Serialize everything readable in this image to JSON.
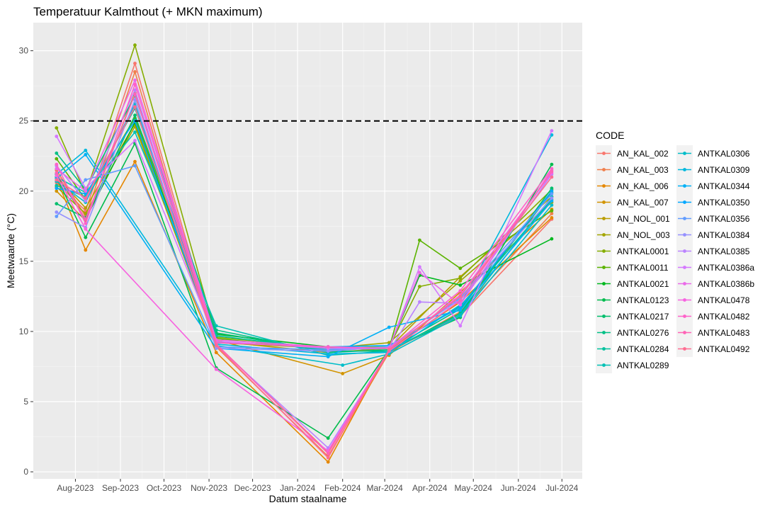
{
  "chart_data": {
    "type": "line",
    "title": "Temperatuur Kalmthout (+ MKN maximum)",
    "xlabel": "Datum staalname",
    "ylabel": "Meetwaarde (°C)",
    "xlim": [
      "2023-07-03",
      "2024-07-15"
    ],
    "ylim": [
      -0.5,
      32
    ],
    "x_ticks": [
      "2023-08-01",
      "2023-09-01",
      "2023-10-01",
      "2023-11-01",
      "2023-12-01",
      "2024-01-01",
      "2024-02-01",
      "2024-03-01",
      "2024-04-01",
      "2024-05-01",
      "2024-06-01",
      "2024-07-01"
    ],
    "x_tick_labels": [
      "Aug-2023",
      "Sep-2023",
      "Oct-2023",
      "Nov-2023",
      "Dec-2023",
      "Jan-2024",
      "Feb-2024",
      "Mar-2024",
      "Apr-2024",
      "May-2024",
      "Jun-2024",
      "Jul-2024"
    ],
    "y_ticks": [
      0,
      5,
      10,
      15,
      20,
      25,
      30
    ],
    "y_tick_labels": [
      "0",
      "5",
      "10",
      "15",
      "20",
      "25",
      "30"
    ],
    "reference_line": {
      "y": 25,
      "style": "dashed",
      "color": "#000000"
    },
    "grid": true,
    "legend": {
      "title": "CODE",
      "position": "right",
      "columns": 2
    },
    "series": [
      {
        "name": "AN_KAL_002",
        "color": "#F8766D",
        "x": [
          "2023-07-19",
          "2023-08-08",
          "2023-09-11",
          "2023-11-06",
          "2024-01-22",
          "2024-03-04",
          "2024-04-22",
          "2024-06-24"
        ],
        "y": [
          20.6,
          18.6,
          29.1,
          9.1,
          1.4,
          8.6,
          11.1,
          18.0
        ]
      },
      {
        "name": "AN_KAL_003",
        "color": "#F07F4C",
        "x": [
          "2023-07-19",
          "2023-08-08",
          "2023-09-11",
          "2023-11-06",
          "2024-01-22",
          "2024-03-04",
          "2024-04-22",
          "2024-06-24"
        ],
        "y": [
          21.5,
          18.2,
          28.5,
          8.9,
          1.1,
          8.5,
          11.4,
          18.4
        ]
      },
      {
        "name": "AN_KAL_006",
        "color": "#E58700",
        "x": [
          "2023-07-19",
          "2023-08-08",
          "2023-09-11",
          "2023-11-06",
          "2024-01-22",
          "2024-03-04",
          "2024-04-22",
          "2024-06-24"
        ],
        "y": [
          20.9,
          15.8,
          22.1,
          8.5,
          0.7,
          8.7,
          12.1,
          18.1
        ]
      },
      {
        "name": "AN_KAL_007",
        "color": "#D29400",
        "x": [
          "2023-07-19",
          "2023-08-08",
          "2023-09-11",
          "2023-11-06",
          "2024-02-01",
          "2024-03-04",
          "2024-04-22",
          "2024-06-24"
        ],
        "y": [
          20.0,
          17.9,
          27.0,
          9.4,
          7.0,
          8.3,
          12.8,
          18.7
        ]
      },
      {
        "name": "AN_NOL_001",
        "color": "#BB9D00",
        "x": [
          "2023-07-19",
          "2023-08-08",
          "2023-09-11",
          "2023-11-06",
          "2024-01-22",
          "2024-03-04",
          "2024-04-22",
          "2024-06-24"
        ],
        "y": [
          21.0,
          18.8,
          24.8,
          9.3,
          8.5,
          8.8,
          13.9,
          19.6
        ]
      },
      {
        "name": "AN_NOL_003",
        "color": "#A3A500",
        "x": [
          "2023-07-19",
          "2023-08-08",
          "2023-09-11",
          "2023-11-06",
          "2024-01-22",
          "2024-03-04",
          "2024-04-22",
          "2024-06-24"
        ],
        "y": [
          20.3,
          18.4,
          24.6,
          9.2,
          8.8,
          9.2,
          13.6,
          19.2
        ]
      },
      {
        "name": "ANTKAL0001",
        "color": "#85AD00",
        "x": [
          "2023-07-19",
          "2023-08-08",
          "2023-09-11",
          "2023-11-06",
          "2024-01-22",
          "2024-03-04",
          "2024-03-25",
          "2024-04-22",
          "2024-06-24"
        ],
        "y": [
          24.5,
          19.8,
          30.4,
          9.6,
          8.8,
          8.9,
          13.2,
          13.8,
          20.1
        ]
      },
      {
        "name": "ANTKAL0011",
        "color": "#5BB300",
        "x": [
          "2023-07-19",
          "2023-08-08",
          "2023-09-11",
          "2023-11-06",
          "2024-01-22",
          "2024-03-04",
          "2024-03-25",
          "2024-04-22",
          "2024-06-24"
        ],
        "y": [
          22.3,
          19.4,
          25.2,
          9.5,
          8.7,
          8.8,
          16.5,
          14.5,
          18.6
        ]
      },
      {
        "name": "ANTKAL0021",
        "color": "#00B81F",
        "x": [
          "2023-07-19",
          "2023-08-08",
          "2023-09-11",
          "2023-11-06",
          "2024-01-22",
          "2024-03-04",
          "2024-03-25",
          "2024-04-22",
          "2024-06-24"
        ],
        "y": [
          21.2,
          18.0,
          24.9,
          9.8,
          8.9,
          8.8,
          14.0,
          13.3,
          16.6
        ]
      },
      {
        "name": "ANTKAL0123",
        "color": "#00BB4E",
        "x": [
          "2023-07-19",
          "2023-08-08",
          "2023-09-11",
          "2023-11-06",
          "2024-01-22",
          "2024-03-04",
          "2024-04-22",
          "2024-06-24"
        ],
        "y": [
          21.0,
          16.7,
          23.4,
          7.4,
          2.4,
          8.7,
          11.0,
          21.9
        ]
      },
      {
        "name": "ANTKAL0217",
        "color": "#00BE6C",
        "x": [
          "2023-07-19",
          "2023-08-08",
          "2023-09-11",
          "2023-11-06",
          "2024-01-22",
          "2024-03-04",
          "2024-04-22",
          "2024-06-24"
        ],
        "y": [
          19.1,
          18.1,
          25.4,
          9.9,
          8.6,
          8.6,
          11.3,
          20.2
        ]
      },
      {
        "name": "ANTKAL0276",
        "color": "#00C086",
        "x": [
          "2023-07-19",
          "2023-08-08",
          "2023-09-11",
          "2023-11-06",
          "2024-01-22",
          "2024-03-04",
          "2024-04-22",
          "2024-06-24"
        ],
        "y": [
          22.7,
          20.1,
          26.8,
          10.1,
          8.5,
          8.7,
          11.6,
          19.9
        ]
      },
      {
        "name": "ANTKAL0284",
        "color": "#00C19E",
        "x": [
          "2023-07-19",
          "2023-08-08",
          "2023-09-11",
          "2023-11-06",
          "2024-01-22",
          "2024-03-04",
          "2024-04-22",
          "2024-06-24"
        ],
        "y": [
          20.4,
          19.6,
          25.9,
          9.7,
          8.7,
          8.9,
          11.8,
          19.4
        ]
      },
      {
        "name": "ANTKAL0289",
        "color": "#00C0B4",
        "x": [
          "2023-07-19",
          "2023-08-08",
          "2023-09-11",
          "2023-11-06",
          "2024-01-22",
          "2024-03-04",
          "2024-04-22",
          "2024-06-24"
        ],
        "y": [
          21.0,
          19.9,
          24.2,
          10.4,
          8.3,
          8.6,
          11.2,
          19.6
        ]
      },
      {
        "name": "ANTKAL0306",
        "color": "#00BDC9",
        "x": [
          "2023-07-19",
          "2023-08-08",
          "2023-09-11",
          "2023-11-06",
          "2024-02-01",
          "2024-03-04",
          "2024-04-22",
          "2024-06-24"
        ],
        "y": [
          20.7,
          19.2,
          26.2,
          9.0,
          7.6,
          8.4,
          11.1,
          19.0
        ]
      },
      {
        "name": "ANTKAL0309",
        "color": "#00B8DD",
        "x": [
          "2023-07-19",
          "2023-08-08",
          "2023-11-06",
          "2024-01-22",
          "2024-03-04",
          "2024-04-22",
          "2024-06-24"
        ],
        "y": [
          21.2,
          22.9,
          9.1,
          8.4,
          8.5,
          11.9,
          24.0
        ]
      },
      {
        "name": "ANTKAL0344",
        "color": "#00B0F6",
        "x": [
          "2023-07-19",
          "2023-08-08",
          "2023-11-06",
          "2024-01-22",
          "2024-03-04",
          "2024-04-22",
          "2024-06-24"
        ],
        "y": [
          20.9,
          22.6,
          8.8,
          8.2,
          10.3,
          11.5,
          19.3
        ]
      },
      {
        "name": "ANTKAL0350",
        "color": "#00A7FF",
        "x": [
          "2023-07-19",
          "2023-08-08",
          "2023-09-11",
          "2023-11-06",
          "2024-01-22",
          "2024-03-04",
          "2024-04-22",
          "2024-06-24"
        ],
        "y": [
          20.2,
          19.8,
          25.0,
          9.2,
          8.9,
          9.0,
          11.7,
          20.0
        ]
      },
      {
        "name": "ANTKAL0356",
        "color": "#619CFF",
        "x": [
          "2023-07-19",
          "2023-08-08",
          "2023-09-11",
          "2023-11-06",
          "2024-01-22",
          "2024-03-04",
          "2024-04-22",
          "2024-06-24"
        ],
        "y": [
          18.2,
          20.8,
          21.8,
          8.9,
          8.7,
          8.8,
          12.4,
          19.8
        ]
      },
      {
        "name": "ANTKAL0384",
        "color": "#9590FF",
        "x": [
          "2023-07-19",
          "2023-08-08",
          "2023-09-11",
          "2023-11-06",
          "2024-01-22",
          "2024-03-04",
          "2024-04-22",
          "2024-06-24"
        ],
        "y": [
          18.5,
          17.4,
          26.5,
          8.8,
          8.6,
          8.9,
          12.3,
          19.5
        ]
      },
      {
        "name": "ANTKAL0385",
        "color": "#BA83FF",
        "x": [
          "2023-07-19",
          "2023-08-08",
          "2023-09-11",
          "2023-11-06",
          "2024-01-22",
          "2024-03-04",
          "2024-03-25",
          "2024-04-22",
          "2024-06-24"
        ],
        "y": [
          21.8,
          19.3,
          27.2,
          9.0,
          1.7,
          8.6,
          12.1,
          12.0,
          21.2
        ]
      },
      {
        "name": "ANTKAL0386a",
        "color": "#D577FF",
        "x": [
          "2023-07-19",
          "2023-08-08",
          "2023-09-11",
          "2023-11-06",
          "2024-01-22",
          "2024-03-04",
          "2024-03-25",
          "2024-04-22",
          "2024-06-24"
        ],
        "y": [
          23.9,
          20.2,
          23.6,
          9.3,
          8.8,
          8.8,
          14.6,
          10.4,
          24.3
        ]
      },
      {
        "name": "ANTKAL0386b",
        "color": "#EA6AE8",
        "x": [
          "2023-07-19",
          "2023-08-08",
          "2023-09-11",
          "2023-11-06",
          "2024-01-22",
          "2024-03-04",
          "2024-03-25",
          "2024-04-22",
          "2024-06-24"
        ],
        "y": [
          21.6,
          20.0,
          27.9,
          9.4,
          8.9,
          8.8,
          14.2,
          11.9,
          21.5
        ]
      },
      {
        "name": "ANTKAL0478",
        "color": "#F763E0",
        "x": [
          "2023-07-19",
          "2023-08-08",
          "2023-11-06",
          "2024-01-22",
          "2024-03-04",
          "2024-04-22",
          "2024-06-24"
        ],
        "y": [
          21.1,
          17.3,
          7.3,
          1.5,
          8.7,
          12.6,
          21.3
        ]
      },
      {
        "name": "ANTKAL0482",
        "color": "#FF61C9",
        "x": [
          "2023-07-19",
          "2023-08-08",
          "2023-09-11",
          "2023-11-06",
          "2024-01-22",
          "2024-03-04",
          "2024-04-22",
          "2024-06-24"
        ],
        "y": [
          21.9,
          17.7,
          27.6,
          9.2,
          8.9,
          8.8,
          12.9,
          21.6
        ]
      },
      {
        "name": "ANTKAL0483",
        "color": "#FF63B6",
        "x": [
          "2023-07-19",
          "2023-08-08",
          "2023-09-11",
          "2023-11-06",
          "2024-01-22",
          "2024-03-04",
          "2024-04-22",
          "2024-06-24"
        ],
        "y": [
          21.3,
          18.0,
          26.9,
          9.1,
          1.3,
          8.6,
          12.2,
          21.4
        ]
      },
      {
        "name": "ANTKAL0492",
        "color": "#FF6C91",
        "x": [
          "2023-07-19",
          "2023-08-08",
          "2023-09-11",
          "2023-11-06",
          "2024-01-22",
          "2024-03-04",
          "2024-04-22",
          "2024-06-24"
        ],
        "y": [
          20.8,
          19.5,
          26.0,
          9.0,
          1.0,
          8.7,
          12.5,
          21.0
        ]
      }
    ]
  }
}
